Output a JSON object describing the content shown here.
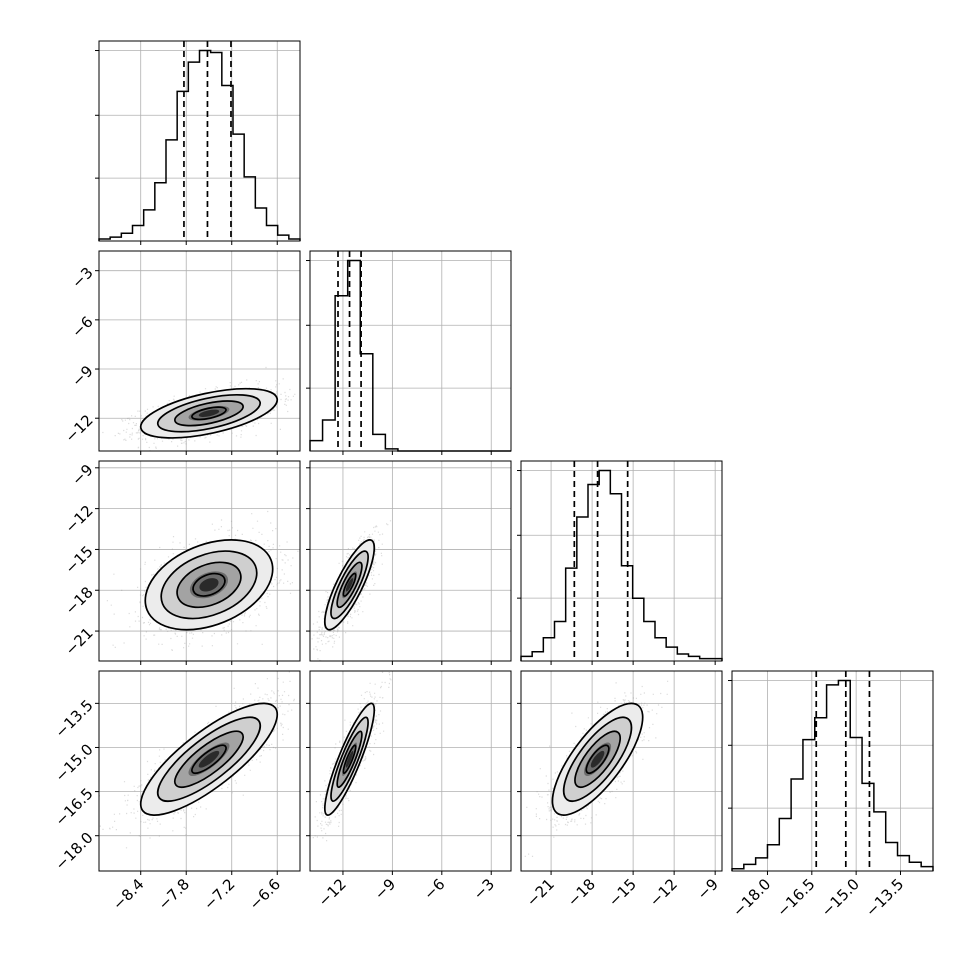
{
  "chart_data": {
    "type": "corner",
    "title": "",
    "parameters": [
      {
        "range": [
          -8.95,
          -6.3
        ],
        "ticks": [
          "−8.4",
          "−7.8",
          "−7.2",
          "−6.6"
        ],
        "tick_values": [
          -8.4,
          -7.8,
          -7.2,
          -6.6
        ],
        "quantiles": [
          -7.83,
          -7.52,
          -7.21
        ],
        "hist": [
          1,
          2,
          4,
          8,
          16,
          30,
          52,
          77,
          92,
          98,
          97,
          80,
          55,
          33,
          17,
          8,
          3,
          1
        ]
      },
      {
        "range": [
          -14.0,
          -1.8
        ],
        "ticks": [
          "−12",
          "−9",
          "−6",
          "−3"
        ],
        "tick_values": [
          -12,
          -9,
          -6,
          -3
        ],
        "quantiles": [
          -12.3,
          -11.6,
          -10.9
        ],
        "hist": [
          5,
          15,
          75,
          92,
          47,
          8,
          1,
          0,
          0,
          0,
          0,
          0,
          0,
          0,
          0,
          0
        ]
      },
      {
        "range": [
          -23.2,
          -8.5
        ],
        "ticks": [
          "−21",
          "−18",
          "−15",
          "−12",
          "−9"
        ],
        "tick_values": [
          -21,
          -18,
          -15,
          -12,
          -9
        ],
        "quantiles": [
          -19.3,
          -17.6,
          -15.4
        ],
        "hist": [
          2,
          4,
          10,
          17,
          40,
          62,
          76,
          82,
          72,
          41,
          27,
          17,
          10,
          6,
          3,
          2,
          1,
          1
        ]
      },
      {
        "range": [
          -19.2,
          -12.4
        ],
        "ticks": [
          "−18.0",
          "−16.5",
          "−15.0",
          "−13.5"
        ],
        "tick_values": [
          -18.0,
          -16.5,
          -15.0,
          -13.5
        ],
        "quantiles": [
          -16.35,
          -15.35,
          -14.55
        ],
        "hist": [
          1,
          3,
          6,
          12,
          24,
          42,
          60,
          70,
          85,
          87,
          61,
          40,
          27,
          13,
          7,
          4,
          2
        ]
      }
    ],
    "pairs": [
      {
        "x": 0,
        "y": 1,
        "center": [
          -7.5,
          -11.7
        ],
        "sx": 0.45,
        "sy": 0.75,
        "rho": 0.55
      },
      {
        "x": 0,
        "y": 2,
        "center": [
          -7.5,
          -17.6
        ],
        "sx": 0.42,
        "sy": 1.65,
        "rho": 0.35
      },
      {
        "x": 1,
        "y": 2,
        "center": [
          -11.6,
          -17.6
        ],
        "sx": 0.75,
        "sy": 1.65,
        "rho": 0.82
      },
      {
        "x": 0,
        "y": 3,
        "center": [
          -7.5,
          -15.4
        ],
        "sx": 0.45,
        "sy": 0.95,
        "rho": 0.8
      },
      {
        "x": 1,
        "y": 3,
        "center": [
          -11.6,
          -15.4
        ],
        "sx": 0.75,
        "sy": 0.95,
        "rho": 0.88
      },
      {
        "x": 2,
        "y": 3,
        "center": [
          -17.6,
          -15.4
        ],
        "sx": 1.65,
        "sy": 0.95,
        "rho": 0.75
      }
    ]
  }
}
